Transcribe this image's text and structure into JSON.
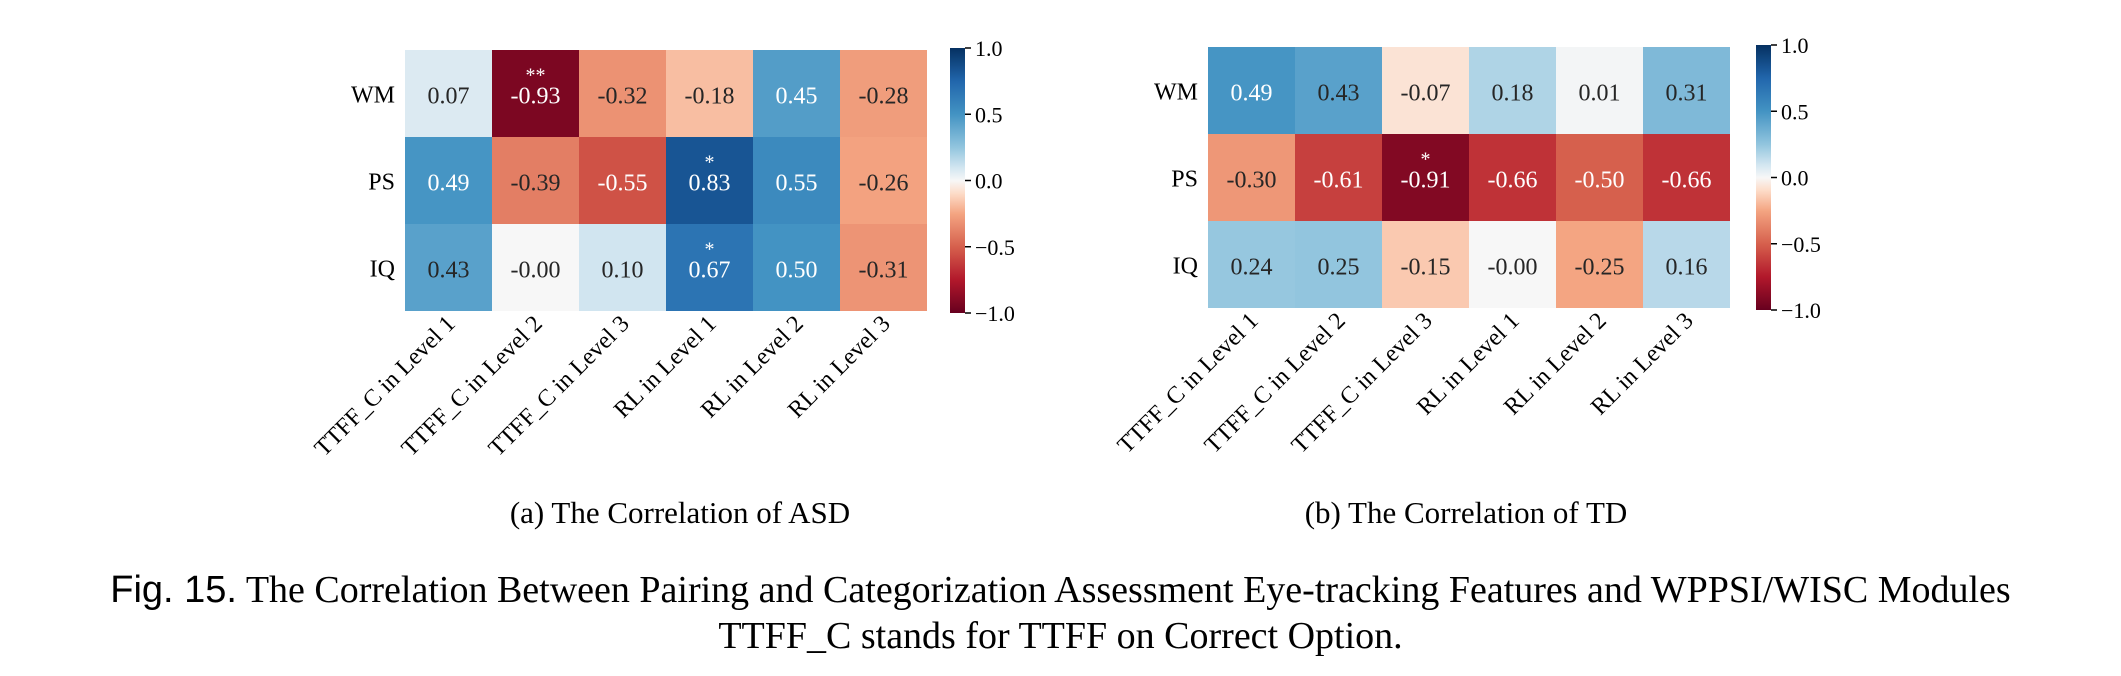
{
  "figure": {
    "label": "Fig. 15.",
    "caption_line1": "The Correlation Between Pairing and Categorization Assessment Eye-tracking Features and WPPSI/WISC Modules",
    "caption_line2": "TTFF_C stands for TTFF on Correct Option."
  },
  "colors": {
    "neg1": "#67001f",
    "neg075": "#b2182b",
    "neg05": "#d6604d",
    "neg025": "#f4a582",
    "neg01": "#fddbc7",
    "zero": "#f7f7f7",
    "pos01": "#d1e5f0",
    "pos025": "#92c5de",
    "pos05": "#4393c3",
    "pos075": "#2166ac",
    "pos1": "#053061"
  },
  "chart_data": [
    {
      "type": "heatmap",
      "subcaption": "(a) The Correlation of ASD",
      "rows": [
        "WM",
        "PS",
        "IQ"
      ],
      "columns": [
        "TTFF_C in Level 1",
        "TTFF_C in Level 2",
        "TTFF_C in Level 3",
        "RL in Level 1",
        "RL in Level 2",
        "RL in Level 3"
      ],
      "values": [
        [
          0.07,
          -0.93,
          -0.32,
          -0.18,
          0.45,
          -0.28
        ],
        [
          0.49,
          -0.39,
          -0.55,
          0.83,
          0.55,
          -0.26
        ],
        [
          0.43,
          -0.0,
          0.1,
          0.67,
          0.5,
          -0.31
        ]
      ],
      "labels": [
        [
          "0.07",
          "-0.93",
          "-0.32",
          "-0.18",
          "0.45",
          "-0.28"
        ],
        [
          "0.49",
          "-0.39",
          "-0.55",
          "0.83",
          "0.55",
          "-0.26"
        ],
        [
          "0.43",
          "-0.00",
          "0.10",
          "0.67",
          "0.50",
          "-0.31"
        ]
      ],
      "significance": [
        [
          "",
          "**",
          "",
          "",
          "",
          ""
        ],
        [
          "",
          "",
          "",
          "*",
          "",
          ""
        ],
        [
          "",
          "",
          "",
          "*",
          "",
          ""
        ]
      ],
      "colorbar": {
        "range": [
          -1.0,
          1.0
        ],
        "ticks": [
          1.0,
          0.5,
          0.0,
          -0.5,
          -1.0
        ],
        "tick_labels": [
          "1.0",
          "0.5",
          "0.0",
          "−0.5",
          "−1.0"
        ]
      }
    },
    {
      "type": "heatmap",
      "subcaption": "(b) The Correlation of TD",
      "rows": [
        "WM",
        "PS",
        "IQ"
      ],
      "columns": [
        "TTFF_C in Level 1",
        "TTFF_C in Level 2",
        "TTFF_C in Level 3",
        "RL in Level 1",
        "RL in Level 2",
        "RL in Level 3"
      ],
      "values": [
        [
          0.49,
          0.43,
          -0.07,
          0.18,
          0.01,
          0.31
        ],
        [
          -0.3,
          -0.61,
          -0.91,
          -0.66,
          -0.5,
          -0.66
        ],
        [
          0.24,
          0.25,
          -0.15,
          -0.0,
          -0.25,
          0.16
        ]
      ],
      "labels": [
        [
          "0.49",
          "0.43",
          "-0.07",
          "0.18",
          "0.01",
          "0.31"
        ],
        [
          "-0.30",
          "-0.61",
          "-0.91",
          "-0.66",
          "-0.50",
          "-0.66"
        ],
        [
          "0.24",
          "0.25",
          "-0.15",
          "-0.00",
          "-0.25",
          "0.16"
        ]
      ],
      "significance": [
        [
          "",
          "",
          "",
          "",
          "",
          ""
        ],
        [
          "",
          "",
          "*",
          "",
          "",
          ""
        ],
        [
          "",
          "",
          "",
          "",
          "",
          ""
        ]
      ],
      "colorbar": {
        "range": [
          -1.0,
          1.0
        ],
        "ticks": [
          1.0,
          0.5,
          0.0,
          -0.5,
          -1.0
        ],
        "tick_labels": [
          "1.0",
          "0.5",
          "0.0",
          "−0.5",
          "−1.0"
        ]
      }
    }
  ]
}
